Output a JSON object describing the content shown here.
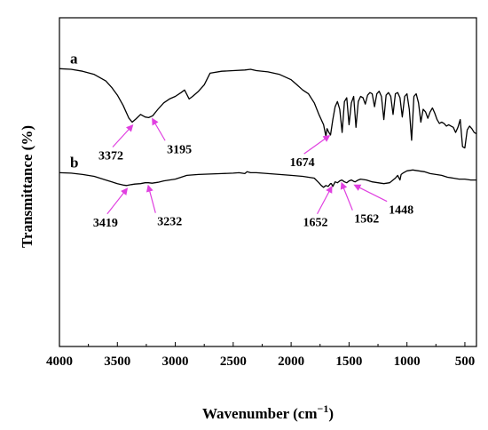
{
  "chart_data": {
    "type": "line",
    "title": "",
    "xlabel": "Wavenumber (cm",
    "xlabel_sup": "−1",
    "xlabel_close": ")",
    "ylabel": "Transmittance (%)",
    "xlim": [
      4000,
      400
    ],
    "x_reversed": true,
    "y_ticks_shown": false,
    "grid": false,
    "x_ticks": [
      4000,
      3500,
      3000,
      2500,
      2000,
      1500,
      1000,
      500
    ],
    "x_tick_labels": [
      "4000",
      "3500",
      "3000",
      "2500",
      "2000",
      "1500",
      "1000",
      "500"
    ],
    "series": [
      {
        "name": "a",
        "x": [
          4000,
          3900,
          3800,
          3700,
          3600,
          3550,
          3500,
          3450,
          3400,
          3372,
          3340,
          3300,
          3260,
          3230,
          3195,
          3150,
          3100,
          3050,
          3000,
          2950,
          2920,
          2880,
          2850,
          2800,
          2750,
          2700,
          2600,
          2500,
          2400,
          2350,
          2300,
          2200,
          2100,
          2000,
          1950,
          1900,
          1850,
          1800,
          1760,
          1720,
          1700,
          1690,
          1674,
          1660,
          1640,
          1620,
          1600,
          1580,
          1560,
          1540,
          1520,
          1500,
          1480,
          1460,
          1440,
          1420,
          1400,
          1380,
          1360,
          1340,
          1320,
          1300,
          1280,
          1260,
          1240,
          1220,
          1200,
          1180,
          1160,
          1140,
          1120,
          1100,
          1080,
          1060,
          1040,
          1020,
          1000,
          980,
          960,
          940,
          920,
          900,
          880,
          860,
          840,
          820,
          800,
          780,
          760,
          740,
          720,
          700,
          680,
          660,
          640,
          620,
          600,
          580,
          560,
          540,
          520,
          500,
          480,
          460,
          440,
          420,
          400
        ],
        "y": [
          0.915,
          0.91,
          0.895,
          0.87,
          0.82,
          0.77,
          0.71,
          0.63,
          0.53,
          0.5,
          0.525,
          0.56,
          0.54,
          0.535,
          0.55,
          0.6,
          0.65,
          0.68,
          0.7,
          0.73,
          0.75,
          0.68,
          0.7,
          0.74,
          0.79,
          0.88,
          0.895,
          0.9,
          0.905,
          0.91,
          0.9,
          0.89,
          0.87,
          0.83,
          0.79,
          0.75,
          0.72,
          0.65,
          0.56,
          0.48,
          0.39,
          0.45,
          0.42,
          0.4,
          0.52,
          0.62,
          0.66,
          0.6,
          0.42,
          0.66,
          0.69,
          0.48,
          0.65,
          0.7,
          0.46,
          0.66,
          0.7,
          0.69,
          0.64,
          0.71,
          0.73,
          0.72,
          0.62,
          0.72,
          0.74,
          0.7,
          0.52,
          0.71,
          0.73,
          0.7,
          0.56,
          0.72,
          0.73,
          0.69,
          0.54,
          0.7,
          0.72,
          0.6,
          0.36,
          0.7,
          0.72,
          0.65,
          0.5,
          0.6,
          0.58,
          0.53,
          0.58,
          0.61,
          0.57,
          0.52,
          0.49,
          0.5,
          0.49,
          0.47,
          0.48,
          0.47,
          0.46,
          0.42,
          0.46,
          0.52,
          0.31,
          0.3,
          0.44,
          0.47,
          0.45,
          0.42,
          0.41
        ]
      },
      {
        "name": "b",
        "x": [
          4000,
          3900,
          3800,
          3700,
          3600,
          3500,
          3450,
          3419,
          3380,
          3350,
          3300,
          3260,
          3232,
          3200,
          3150,
          3100,
          3050,
          3000,
          2950,
          2900,
          2800,
          2700,
          2600,
          2500,
          2450,
          2400,
          2380,
          2350,
          2300,
          2200,
          2100,
          2000,
          1900,
          1850,
          1800,
          1760,
          1740,
          1720,
          1700,
          1680,
          1660,
          1652,
          1640,
          1620,
          1600,
          1580,
          1562,
          1540,
          1520,
          1500,
          1480,
          1460,
          1448,
          1420,
          1400,
          1350,
          1300,
          1250,
          1200,
          1150,
          1100,
          1080,
          1060,
          1050,
          1030,
          1000,
          950,
          900,
          850,
          800,
          750,
          700,
          650,
          600,
          550,
          500,
          450,
          400
        ],
        "y": [
          0.88,
          0.875,
          0.86,
          0.84,
          0.8,
          0.76,
          0.745,
          0.74,
          0.75,
          0.755,
          0.76,
          0.77,
          0.77,
          0.765,
          0.775,
          0.79,
          0.8,
          0.81,
          0.83,
          0.85,
          0.86,
          0.865,
          0.87,
          0.875,
          0.88,
          0.87,
          0.89,
          0.88,
          0.88,
          0.87,
          0.86,
          0.85,
          0.84,
          0.83,
          0.82,
          0.77,
          0.74,
          0.72,
          0.74,
          0.73,
          0.76,
          0.76,
          0.73,
          0.78,
          0.77,
          0.79,
          0.8,
          0.78,
          0.77,
          0.79,
          0.8,
          0.785,
          0.78,
          0.8,
          0.81,
          0.8,
          0.78,
          0.77,
          0.76,
          0.77,
          0.82,
          0.85,
          0.8,
          0.86,
          0.88,
          0.9,
          0.91,
          0.9,
          0.89,
          0.87,
          0.86,
          0.85,
          0.83,
          0.82,
          0.81,
          0.81,
          0.8,
          0.8
        ]
      }
    ],
    "annotations": [
      {
        "text": "3372",
        "x": 3372,
        "series": "a"
      },
      {
        "text": "3195",
        "x": 3195,
        "series": "a"
      },
      {
        "text": "1674",
        "x": 1674,
        "series": "a"
      },
      {
        "text": "3419",
        "x": 3419,
        "series": "b"
      },
      {
        "text": "3232",
        "x": 3232,
        "series": "b"
      },
      {
        "text": "1652",
        "x": 1652,
        "series": "b"
      },
      {
        "text": "1562",
        "x": 1562,
        "series": "b"
      },
      {
        "text": "1448",
        "x": 1448,
        "series": "b"
      }
    ],
    "colors": {
      "line": "#000000",
      "arrow": "#e040e0",
      "axis": "#000000"
    }
  }
}
